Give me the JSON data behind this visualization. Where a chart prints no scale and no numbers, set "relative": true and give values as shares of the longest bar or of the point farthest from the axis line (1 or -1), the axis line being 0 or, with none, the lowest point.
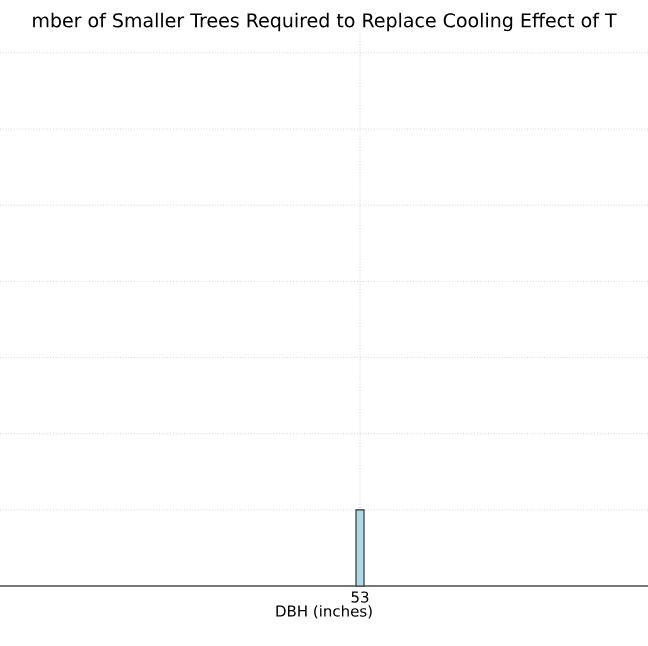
{
  "chart_data": {
    "type": "bar",
    "title": "mber of Smaller Trees Required to Replace Cooling Effect of T",
    "xlabel": "DBH (inches)",
    "categories": [
      "53"
    ],
    "values": [
      1
    ],
    "color": "#add8e6",
    "relative": true,
    "grid": true
  }
}
